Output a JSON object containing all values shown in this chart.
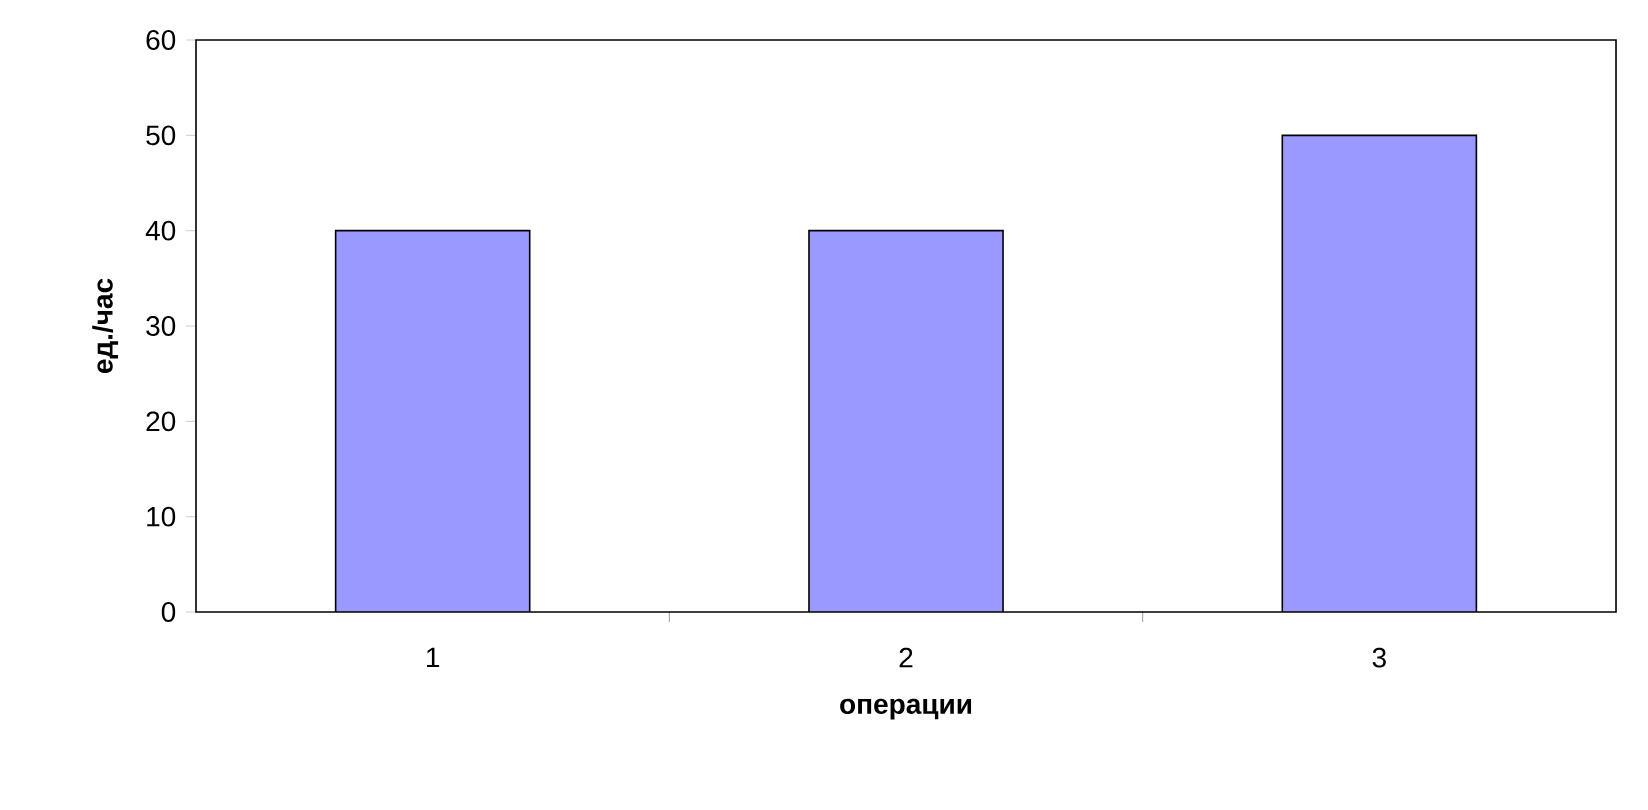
{
  "chart_data": {
    "type": "bar",
    "xlabel": "операции",
    "ylabel": "ед./час",
    "categories": [
      "1",
      "2",
      "3"
    ],
    "values": [
      40,
      40,
      50
    ],
    "color": "#9999ff",
    "ylim": [
      0,
      60
    ],
    "yticks": [
      0,
      10,
      20,
      30,
      40,
      50,
      60
    ]
  }
}
